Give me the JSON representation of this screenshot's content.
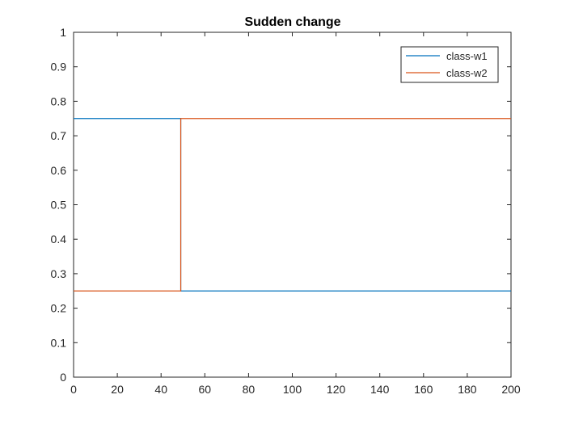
{
  "chart_data": {
    "type": "line",
    "title": "Sudden change",
    "xlabel": "",
    "ylabel": "",
    "xlim": [
      0,
      200
    ],
    "ylim": [
      0,
      1
    ],
    "x_ticks": [
      0,
      20,
      40,
      60,
      80,
      100,
      120,
      140,
      160,
      180,
      200
    ],
    "y_ticks": [
      0,
      0.1,
      0.2,
      0.3,
      0.4,
      0.5,
      0.6,
      0.7,
      0.8,
      0.9,
      1
    ],
    "x_tick_labels": [
      "0",
      "20",
      "40",
      "60",
      "80",
      "100",
      "120",
      "140",
      "160",
      "180",
      "200"
    ],
    "y_tick_labels": [
      "0",
      "0.1",
      "0.2",
      "0.3",
      "0.4",
      "0.5",
      "0.6",
      "0.7",
      "0.8",
      "0.9",
      "1"
    ],
    "grid": false,
    "legend_position": "top-right",
    "series": [
      {
        "name": "class-w1",
        "color": "#0072BD",
        "x": [
          0,
          49,
          49,
          200
        ],
        "y": [
          0.75,
          0.75,
          0.25,
          0.25
        ]
      },
      {
        "name": "class-w2",
        "color": "#D95319",
        "x": [
          0,
          49,
          49,
          200
        ],
        "y": [
          0.25,
          0.25,
          0.75,
          0.75
        ]
      }
    ]
  }
}
